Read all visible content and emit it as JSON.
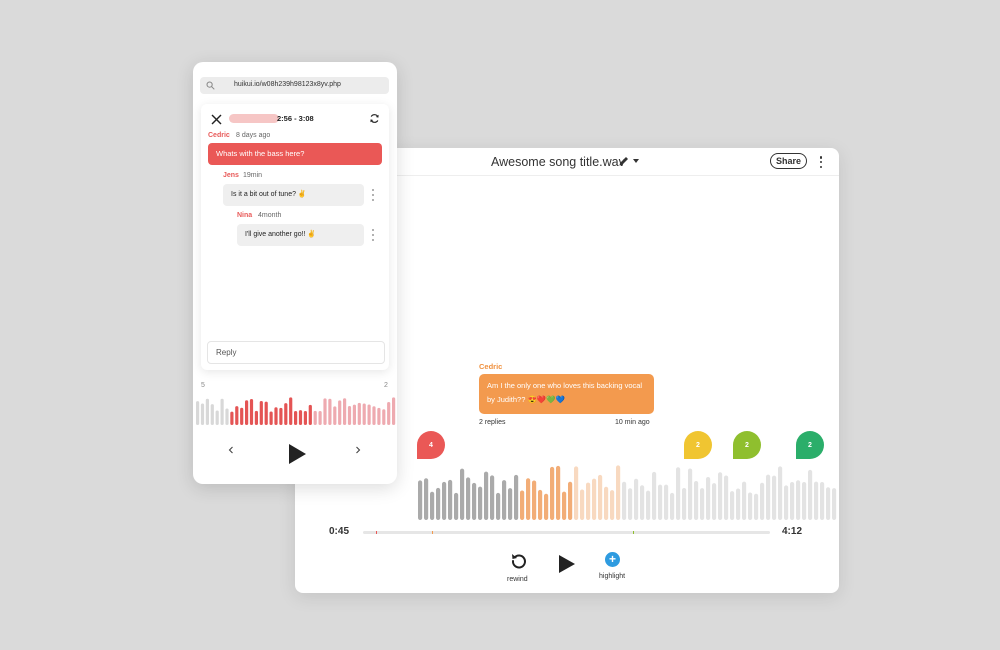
{
  "desktop": {
    "title": "Awesome song title.wav",
    "share_label": "Share",
    "comment": {
      "author": "Cedric",
      "text": "Am I the only one who loves this backing vocal by Judith?? 😍❤️💚💙",
      "replies": "2 replies",
      "time": "10 min ago"
    },
    "markers": [
      {
        "count": "4",
        "color": "#ea5856"
      },
      {
        "count": "2",
        "color": "#f0c531"
      },
      {
        "count": "2",
        "color": "#8fbf2e"
      },
      {
        "count": "2",
        "color": "#2bae6a"
      }
    ],
    "time_current": "0:45",
    "time_total": "4:12",
    "rewind_label": "rewind",
    "highlight_label": "highlight"
  },
  "mobile": {
    "url": "huikui.io/w08h239h98123x8yv.php",
    "range": "2:56 - 3:08",
    "comments": [
      {
        "author": "Cedric",
        "time": "8 days ago",
        "text": "Whats with the bass here?"
      },
      {
        "author": "Jens",
        "time": "19min",
        "text": "Is it a bit out of tune? ✌️"
      },
      {
        "author": "Nina",
        "time": "4month",
        "text": "I'll give another go!! ✌️"
      }
    ],
    "reply_placeholder": "Reply",
    "left_num": "5",
    "right_num": "2"
  }
}
